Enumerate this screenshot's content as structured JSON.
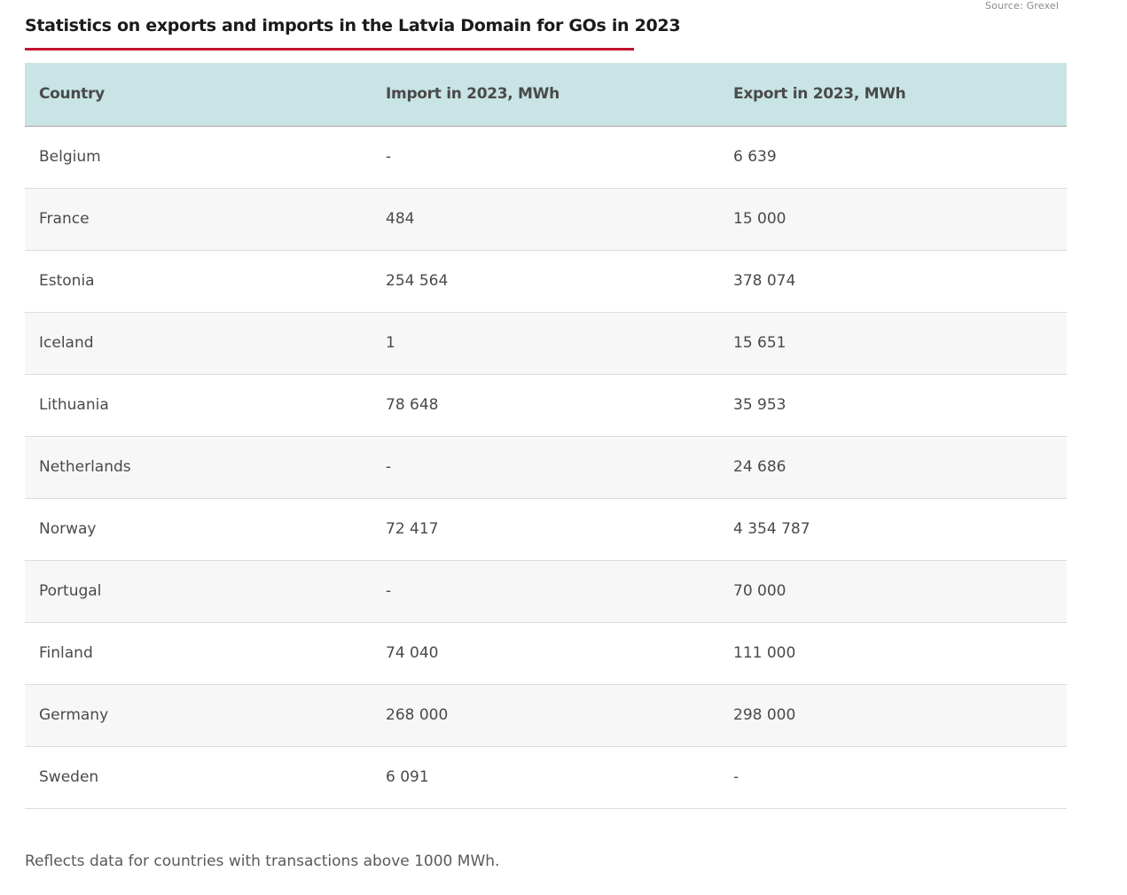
{
  "source": "Source: Grexel",
  "title": "Statistics on exports and imports in the Latvia Domain for GOs in 2023",
  "accent_color": "#c4122f",
  "header_bg_color": "#c8e4e5",
  "table": {
    "headers": [
      "Country",
      "Import in 2023, MWh",
      "Export in 2023, MWh"
    ],
    "rows": [
      [
        "Belgium",
        "-",
        "6 639"
      ],
      [
        "France",
        "484",
        "15 000"
      ],
      [
        "Estonia",
        "254 564",
        "378 074"
      ],
      [
        "Iceland",
        "1",
        "15 651"
      ],
      [
        "Lithuania",
        "78 648",
        "35 953"
      ],
      [
        "Netherlands",
        "-",
        "24 686"
      ],
      [
        "Norway",
        "72 417",
        "4 354 787"
      ],
      [
        "Portugal",
        "-",
        "70 000"
      ],
      [
        "Finland",
        "74 040",
        "111 000"
      ],
      [
        "Germany",
        "268 000",
        "298 000"
      ],
      [
        "Sweden",
        "6 091",
        "-"
      ]
    ]
  },
  "note": "Reflects data for countries with transactions above 1000 MWh."
}
